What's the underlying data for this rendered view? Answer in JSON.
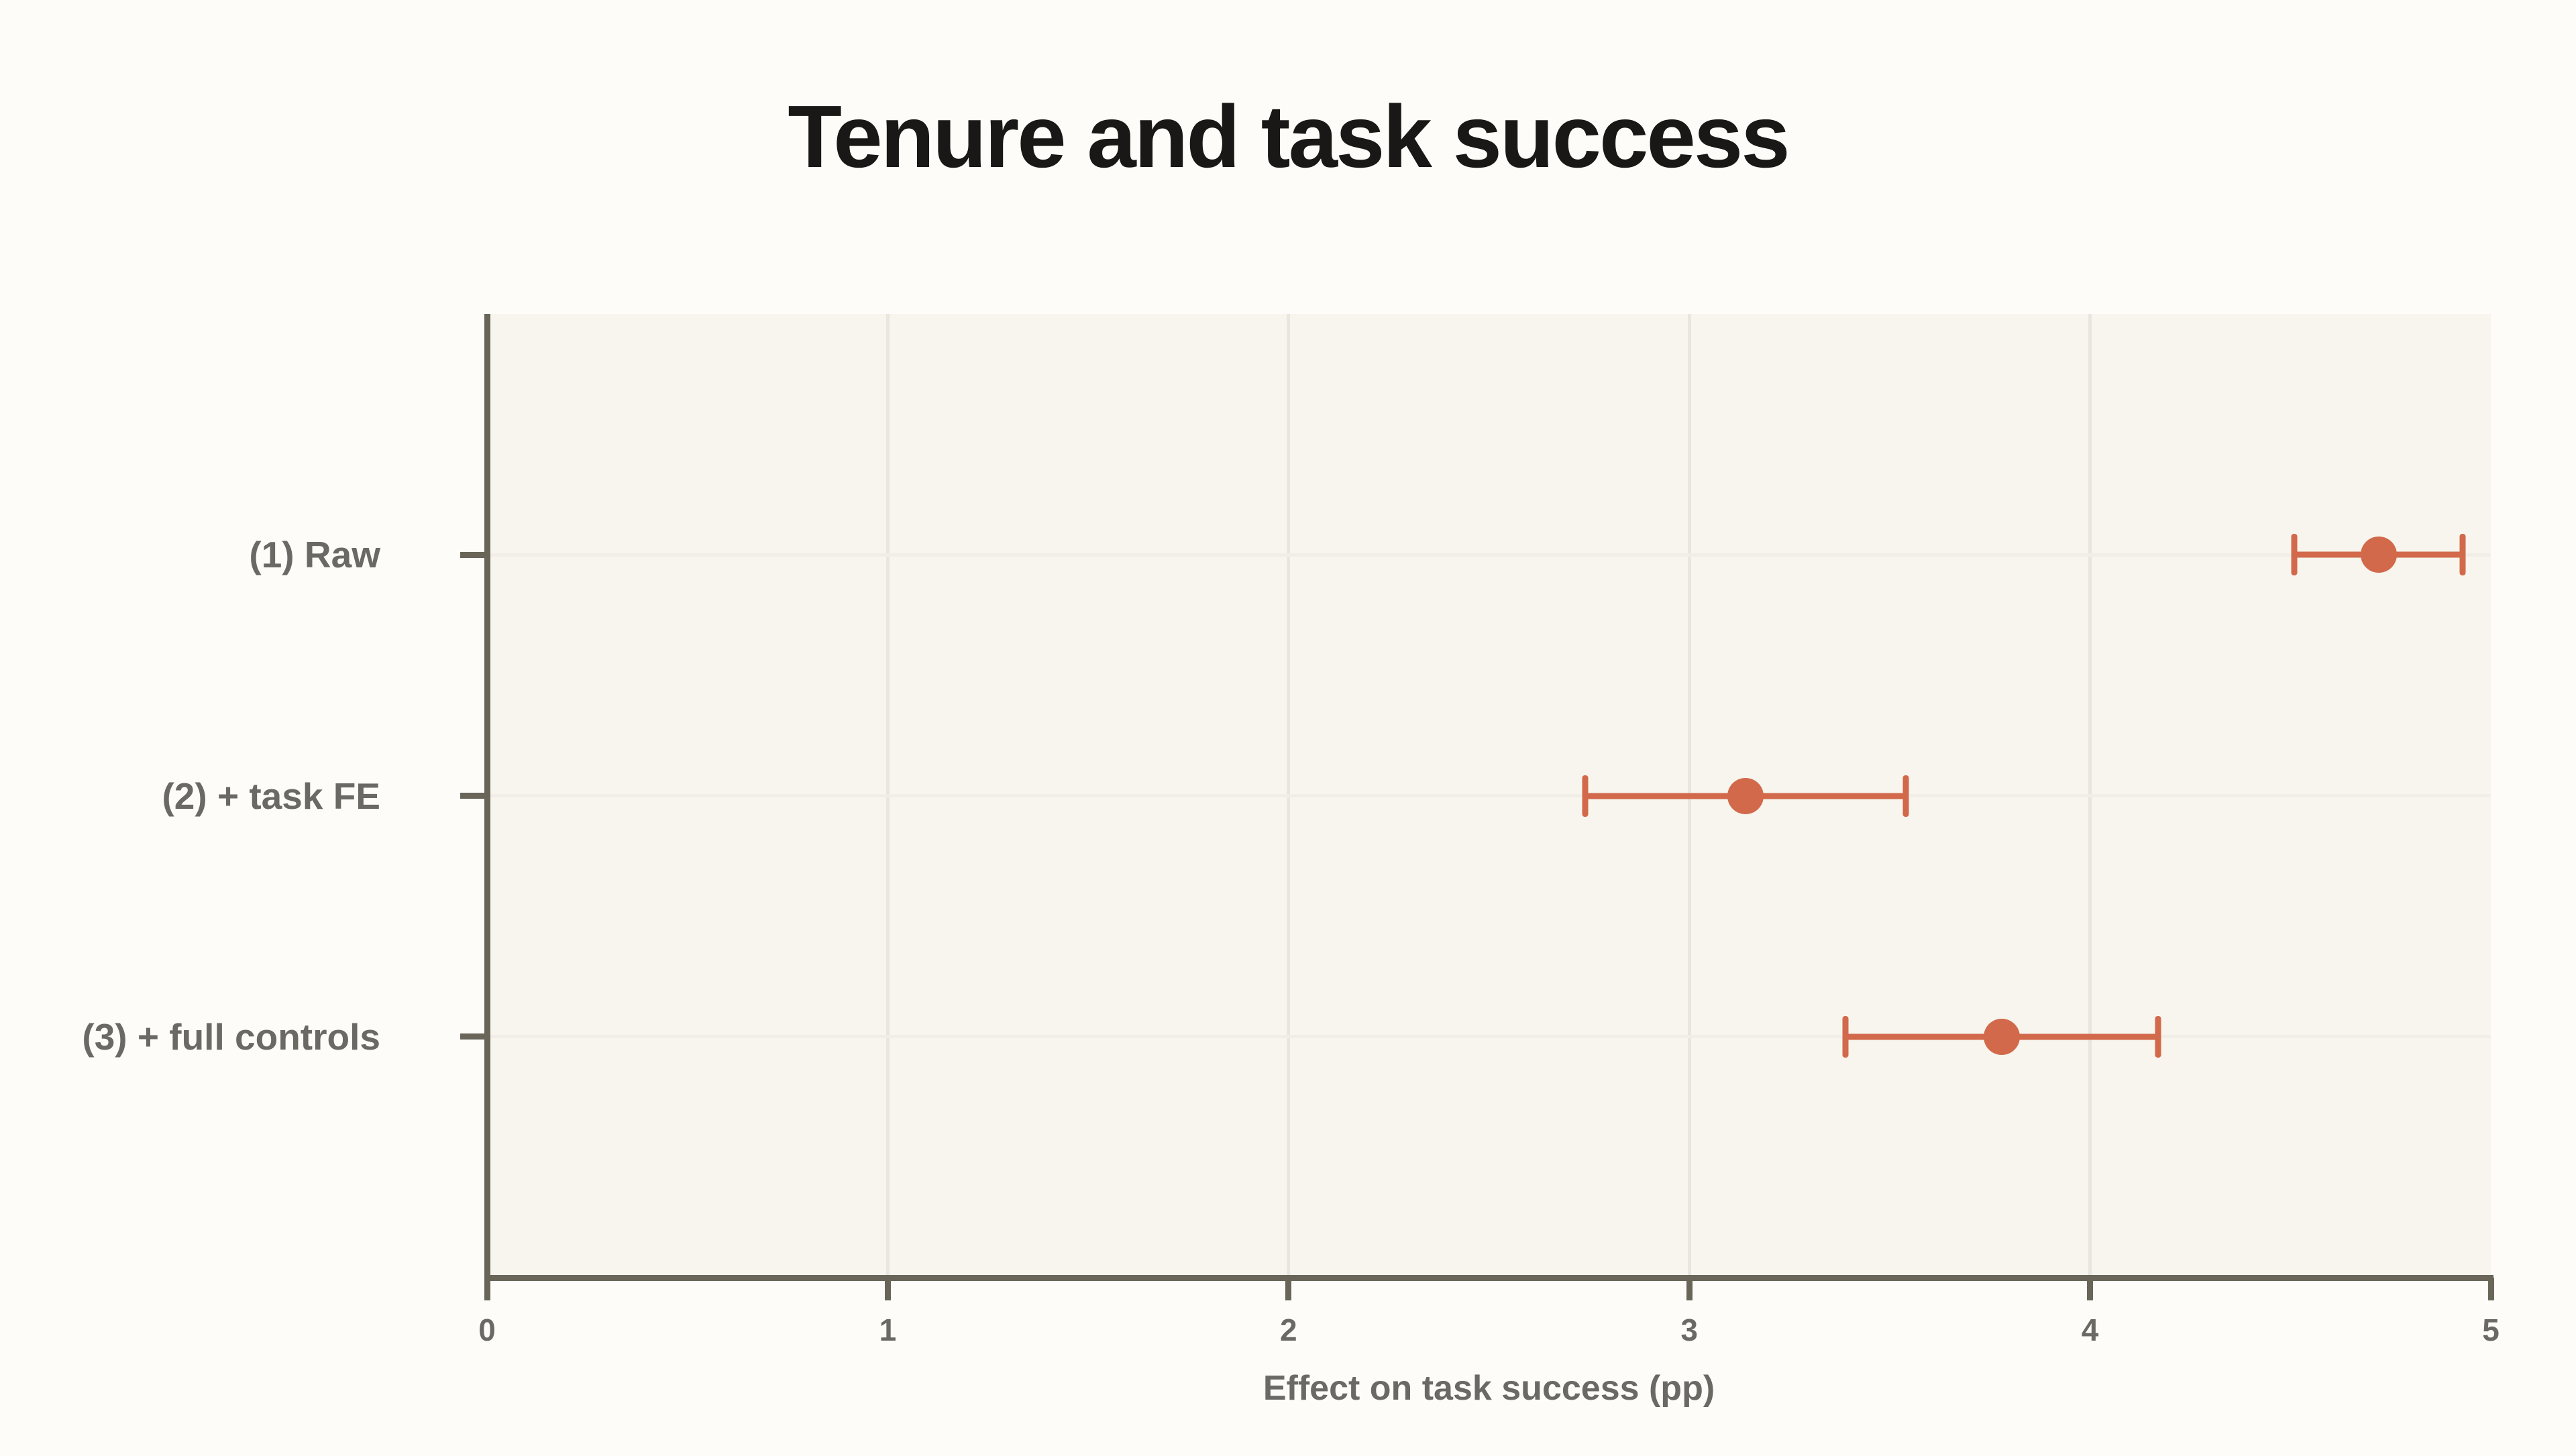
{
  "title": "Tenure and task success",
  "xlabel": "Effect on task success (pp)",
  "chart_data": {
    "type": "scatter",
    "subtype": "dot-and-whisker coefficient plot",
    "title": "Tenure and task success",
    "xlabel": "Effect on task success (pp)",
    "ylabel": "",
    "xlim": [
      0,
      5
    ],
    "x_ticks": [
      {
        "value": 0,
        "label": "0"
      },
      {
        "value": 1,
        "label": "1"
      },
      {
        "value": 2,
        "label": "2"
      },
      {
        "value": 3,
        "label": "3"
      },
      {
        "value": 4,
        "label": "4"
      },
      {
        "value": 5,
        "label": "5"
      }
    ],
    "grid_x": [
      1,
      2,
      3,
      4
    ],
    "grid_horizontal_at_rows": true,
    "legend": "none",
    "rows": [
      {
        "label": "(1) Raw",
        "estimate": 4.72,
        "ci_low": 4.51,
        "ci_high": 4.93
      },
      {
        "label": "(2) + task FE",
        "estimate": 3.14,
        "ci_low": 2.74,
        "ci_high": 3.54
      },
      {
        "label": "(3) + full controls",
        "estimate": 3.78,
        "ci_low": 3.39,
        "ci_high": 4.17
      }
    ]
  },
  "colors": {
    "accent": "#d2694b",
    "title": "#191817",
    "label": "#6b6963",
    "axis": "#696659",
    "page_background": "#fdfcf9",
    "plot_background": "#f7f5ee",
    "grid_vertical": "#e8e6de",
    "grid_horizontal": "#f0eee6"
  }
}
